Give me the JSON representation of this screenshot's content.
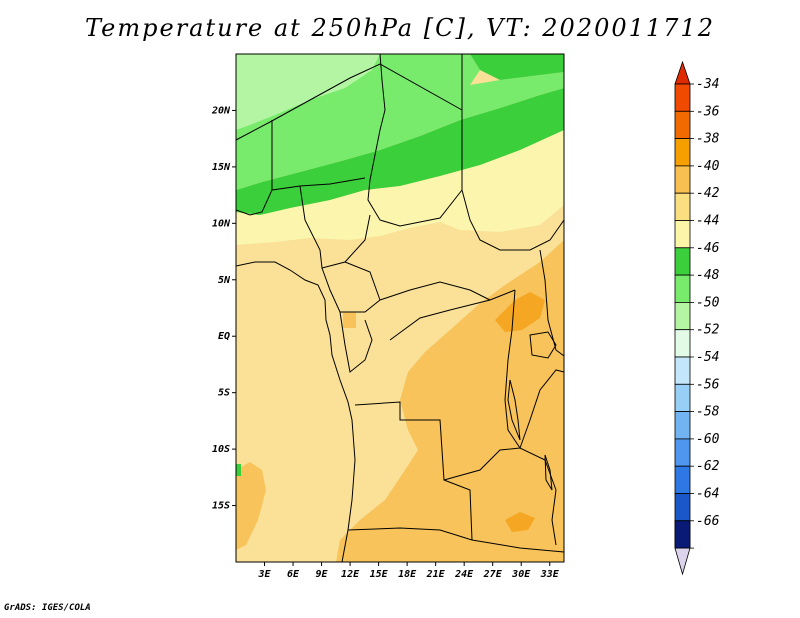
{
  "title": "Temperature at 250hPa [C], VT: 2020011712",
  "credit": "GrADS: IGES/COLA",
  "map": {
    "lon_range": [
      0,
      34.5
    ],
    "lat_range": [
      -20,
      25
    ],
    "lon_ticks": [
      {
        "value": 3,
        "label": "3E"
      },
      {
        "value": 6,
        "label": "6E"
      },
      {
        "value": 9,
        "label": "9E"
      },
      {
        "value": 12,
        "label": "12E"
      },
      {
        "value": 15,
        "label": "15E"
      },
      {
        "value": 18,
        "label": "18E"
      },
      {
        "value": 21,
        "label": "21E"
      },
      {
        "value": 24,
        "label": "24E"
      },
      {
        "value": 27,
        "label": "27E"
      },
      {
        "value": 30,
        "label": "30E"
      },
      {
        "value": 33,
        "label": "33E"
      }
    ],
    "lat_ticks": [
      {
        "value": 20,
        "label": "20N"
      },
      {
        "value": 15,
        "label": "15N"
      },
      {
        "value": 10,
        "label": "10N"
      },
      {
        "value": 5,
        "label": "5N"
      },
      {
        "value": 0,
        "label": "EQ"
      },
      {
        "value": -5,
        "label": "5S"
      },
      {
        "value": -10,
        "label": "10S"
      },
      {
        "value": -15,
        "label": "15S"
      }
    ]
  },
  "colorbar": {
    "levels": [
      {
        "label": "-34",
        "color": "#f04a00"
      },
      {
        "label": "-36",
        "color": "#f06a00"
      },
      {
        "label": "-38",
        "color": "#f5a000"
      },
      {
        "label": "-40",
        "color": "#f7c050"
      },
      {
        "label": "-42",
        "color": "#f9df80"
      },
      {
        "label": "-44",
        "color": "#fbf5a8"
      },
      {
        "label": "-46",
        "color": "#3ccf3c"
      },
      {
        "label": "-48",
        "color": "#78ea6c"
      },
      {
        "label": "-50",
        "color": "#b4f5a4"
      },
      {
        "label": "-52",
        "color": "#e2fbe6"
      },
      {
        "label": "-54",
        "color": "#c4e6fa"
      },
      {
        "label": "-56",
        "color": "#97cff6"
      },
      {
        "label": "-58",
        "color": "#72b4f2"
      },
      {
        "label": "-60",
        "color": "#4e96ee"
      },
      {
        "label": "-62",
        "color": "#2e78e4"
      },
      {
        "label": "-64",
        "color": "#1a58c8"
      },
      {
        "label": "-66",
        "color": "#0c3aa4"
      }
    ],
    "top_arrow_color": "#e02a00",
    "bottom_segment_color": "#081a76",
    "bottom_arrow_color": "#dcd4ec"
  }
}
